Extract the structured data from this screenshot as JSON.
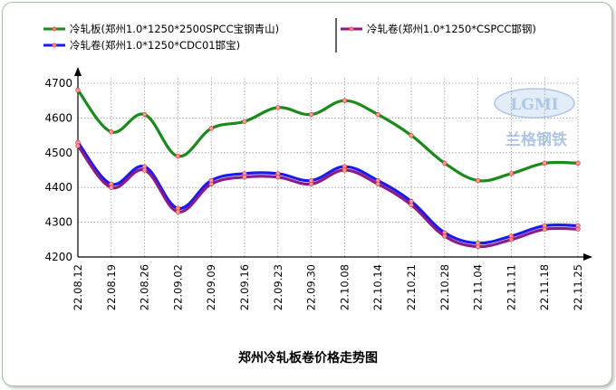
{
  "watermark": {
    "logo_text": "LGMI",
    "brand_text": "兰格钢铁"
  },
  "chart_data": {
    "type": "line",
    "title": "郑州冷轧板卷价格走势图",
    "xlabel": "",
    "ylabel": "",
    "x": [
      "22.08.12",
      "22.08.19",
      "22.08.26",
      "22.09.02",
      "22.09.09",
      "22.09.16",
      "22.09.23",
      "22.09.30",
      "22.10.08",
      "22.10.14",
      "22.10.21",
      "22.10.28",
      "22.11.04",
      "22.11.11",
      "22.11.18",
      "22.11.25"
    ],
    "ylim": [
      4200,
      4700
    ],
    "yticks": [
      4200,
      4300,
      4400,
      4500,
      4600,
      4700
    ],
    "grid": true,
    "legend_position": "top",
    "series": [
      {
        "name": "冷轧板(郑州1.0*1250*2500SPCC宝钢青山)",
        "color": "#1a8a1a",
        "values": [
          4680,
          4560,
          4610,
          4490,
          4570,
          4590,
          4630,
          4610,
          4650,
          4610,
          4550,
          4470,
          4420,
          4440,
          4470,
          4470
        ]
      },
      {
        "name": "冷轧卷(郑州1.0*1250*CSPCC邯钢)",
        "color": "#8b1a8b",
        "values": [
          4520,
          4400,
          4450,
          4330,
          4410,
          4430,
          4430,
          4410,
          4450,
          4410,
          4350,
          4260,
          4230,
          4250,
          4280,
          4280
        ]
      },
      {
        "name": "冷轧卷(郑州1.0*1250*CDC01邯宝)",
        "color": "#1a1aee",
        "values": [
          4530,
          4410,
          4460,
          4340,
          4420,
          4440,
          4440,
          4420,
          4460,
          4420,
          4360,
          4270,
          4240,
          4260,
          4290,
          4290
        ]
      }
    ]
  }
}
